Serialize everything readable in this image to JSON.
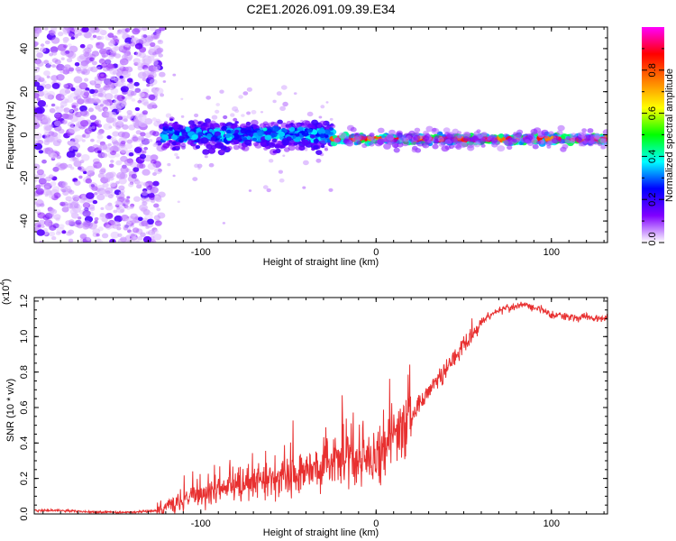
{
  "title": "C2E1.2026.091.09.39.E34",
  "chart_data": [
    {
      "type": "heatmap",
      "title": "C2E1.2026.091.09.39.E34",
      "xlabel": "Height of straight line (km)",
      "ylabel": "Frequency (Hz)",
      "xlim": [
        -195,
        132
      ],
      "ylim": [
        -50,
        50
      ],
      "x_ticks": [
        -100,
        0,
        100
      ],
      "x_tick_labels": [
        "-100",
        "0",
        "100"
      ],
      "y_ticks": [
        -40,
        -20,
        0,
        20,
        40
      ],
      "y_tick_labels": [
        "-40",
        "-20",
        "0",
        "20",
        "40"
      ],
      "description_of_content": "Noisy scattered low-amplitude spectral energy for heights below about -122 km; a band of elevated amplitude (0.2-0.4) around 0 Hz between about -122 and -25 km; a narrow strong line (up to ~0.9) near -2 Hz from about -25 km to 132 km",
      "colorbar": {
        "label": "Normalized spectral amplitude",
        "range": [
          0,
          1
        ],
        "ticks": [
          0.0,
          0.2,
          0.4,
          0.6,
          0.8
        ],
        "tick_labels": [
          "0.0",
          "0.2",
          "0.4",
          "0.6",
          "0.8"
        ],
        "colors": [
          "#ffffff",
          "#8000ff",
          "#0000ff",
          "#00ffff",
          "#00ff00",
          "#ffff00",
          "#ff8000",
          "#ff0000",
          "#ff00ff"
        ]
      }
    },
    {
      "type": "line",
      "xlabel": "Height of straight line (km)",
      "ylabel": "SNR (10 * v/v)",
      "multiplier": "(x10",
      "multiplier_exp": "4",
      "multiplier_close": ")",
      "xlim": [
        -195,
        132
      ],
      "ylim": [
        0,
        1.22
      ],
      "x_ticks": [
        -100,
        0,
        100
      ],
      "x_tick_labels": [
        "-100",
        "0",
        "100"
      ],
      "y_ticks": [
        0.0,
        0.2,
        0.4,
        0.6,
        0.8,
        1.0,
        1.2
      ],
      "y_tick_labels": [
        "0.0",
        "0.2",
        "0.4",
        "0.6",
        "0.8",
        "1.0",
        "1.2"
      ],
      "color": "#e83030",
      "series": [
        {
          "name": "SNR",
          "x": [
            -195,
            -180,
            -160,
            -140,
            -125,
            -115,
            -105,
            -95,
            -85,
            -75,
            -65,
            -55,
            -45,
            -35,
            -25,
            -20,
            -15,
            -10,
            -5,
            0,
            5,
            10,
            15,
            20,
            25,
            30,
            35,
            40,
            45,
            50,
            55,
            60,
            65,
            70,
            75,
            80,
            85,
            90,
            95,
            100,
            105,
            110,
            115,
            120,
            125,
            132
          ],
          "y": [
            0.02,
            0.02,
            0.01,
            0.01,
            0.02,
            0.05,
            0.09,
            0.12,
            0.14,
            0.16,
            0.18,
            0.2,
            0.22,
            0.25,
            0.28,
            0.3,
            0.3,
            0.28,
            0.3,
            0.32,
            0.36,
            0.42,
            0.46,
            0.55,
            0.62,
            0.7,
            0.76,
            0.82,
            0.88,
            0.96,
            1.02,
            1.08,
            1.12,
            1.15,
            1.16,
            1.17,
            1.18,
            1.16,
            1.15,
            1.12,
            1.12,
            1.11,
            1.11,
            1.11,
            1.1,
            1.11
          ]
        }
      ]
    }
  ]
}
